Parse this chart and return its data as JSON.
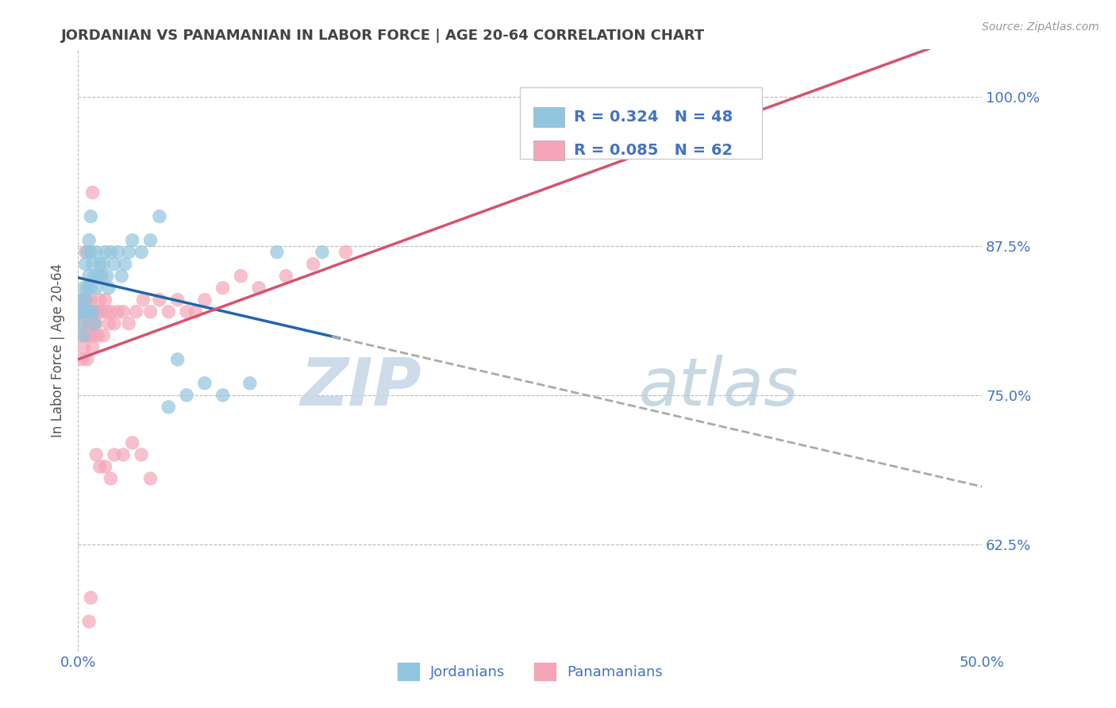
{
  "title": "JORDANIAN VS PANAMANIAN IN LABOR FORCE | AGE 20-64 CORRELATION CHART",
  "source_text": "Source: ZipAtlas.com",
  "ylabel": "In Labor Force | Age 20-64",
  "xlim": [
    0.0,
    0.5
  ],
  "ylim": [
    0.535,
    1.04
  ],
  "ytick_labels": [
    "62.5%",
    "75.0%",
    "87.5%",
    "100.0%"
  ],
  "ytick_positions": [
    0.625,
    0.75,
    0.875,
    1.0
  ],
  "legend_label_blue": "Jordanians",
  "legend_label_pink": "Panamanians",
  "blue_color": "#92c5de",
  "pink_color": "#f4a6b8",
  "blue_line_color": "#2166ac",
  "pink_line_color": "#d6536d",
  "gray_dash_color": "#aaaaaa",
  "background_color": "#ffffff",
  "grid_color": "#bbbbbb",
  "title_color": "#444444",
  "axis_label_color": "#555555",
  "tick_color": "#4472c4",
  "blue_r": 0.324,
  "pink_r": 0.085,
  "blue_n": 48,
  "pink_n": 62,
  "jordanian_x": [
    0.001,
    0.002,
    0.002,
    0.003,
    0.003,
    0.003,
    0.004,
    0.004,
    0.005,
    0.005,
    0.005,
    0.006,
    0.006,
    0.006,
    0.007,
    0.007,
    0.007,
    0.008,
    0.008,
    0.009,
    0.009,
    0.01,
    0.01,
    0.011,
    0.012,
    0.013,
    0.014,
    0.015,
    0.016,
    0.017,
    0.018,
    0.02,
    0.022,
    0.024,
    0.026,
    0.028,
    0.03,
    0.035,
    0.04,
    0.045,
    0.05,
    0.055,
    0.06,
    0.07,
    0.08,
    0.095,
    0.11,
    0.135
  ],
  "jordanian_y": [
    0.83,
    0.82,
    0.81,
    0.84,
    0.82,
    0.8,
    0.86,
    0.83,
    0.87,
    0.84,
    0.82,
    0.88,
    0.85,
    0.82,
    0.9,
    0.87,
    0.84,
    0.86,
    0.82,
    0.85,
    0.81,
    0.84,
    0.87,
    0.85,
    0.86,
    0.85,
    0.86,
    0.87,
    0.85,
    0.84,
    0.87,
    0.86,
    0.87,
    0.85,
    0.86,
    0.87,
    0.88,
    0.87,
    0.88,
    0.9,
    0.74,
    0.78,
    0.75,
    0.76,
    0.75,
    0.76,
    0.87,
    0.87
  ],
  "panamanian_x": [
    0.001,
    0.002,
    0.002,
    0.003,
    0.003,
    0.003,
    0.004,
    0.004,
    0.005,
    0.005,
    0.005,
    0.006,
    0.006,
    0.007,
    0.007,
    0.008,
    0.008,
    0.008,
    0.009,
    0.009,
    0.01,
    0.01,
    0.011,
    0.011,
    0.012,
    0.013,
    0.014,
    0.015,
    0.016,
    0.017,
    0.018,
    0.02,
    0.022,
    0.025,
    0.028,
    0.032,
    0.036,
    0.04,
    0.045,
    0.05,
    0.055,
    0.06,
    0.065,
    0.07,
    0.08,
    0.09,
    0.1,
    0.115,
    0.13,
    0.148,
    0.02,
    0.025,
    0.03,
    0.04,
    0.015,
    0.008,
    0.012,
    0.01,
    0.018,
    0.035,
    0.007,
    0.006
  ],
  "panamanian_y": [
    0.82,
    0.8,
    0.78,
    0.81,
    0.79,
    0.83,
    0.87,
    0.82,
    0.83,
    0.8,
    0.78,
    0.82,
    0.81,
    0.8,
    0.83,
    0.79,
    0.82,
    0.81,
    0.81,
    0.8,
    0.82,
    0.81,
    0.8,
    0.82,
    0.83,
    0.82,
    0.8,
    0.83,
    0.82,
    0.81,
    0.82,
    0.81,
    0.82,
    0.82,
    0.81,
    0.82,
    0.83,
    0.82,
    0.83,
    0.82,
    0.83,
    0.82,
    0.82,
    0.83,
    0.84,
    0.85,
    0.84,
    0.85,
    0.86,
    0.87,
    0.7,
    0.7,
    0.71,
    0.68,
    0.69,
    0.92,
    0.69,
    0.7,
    0.68,
    0.7,
    0.58,
    0.56
  ]
}
